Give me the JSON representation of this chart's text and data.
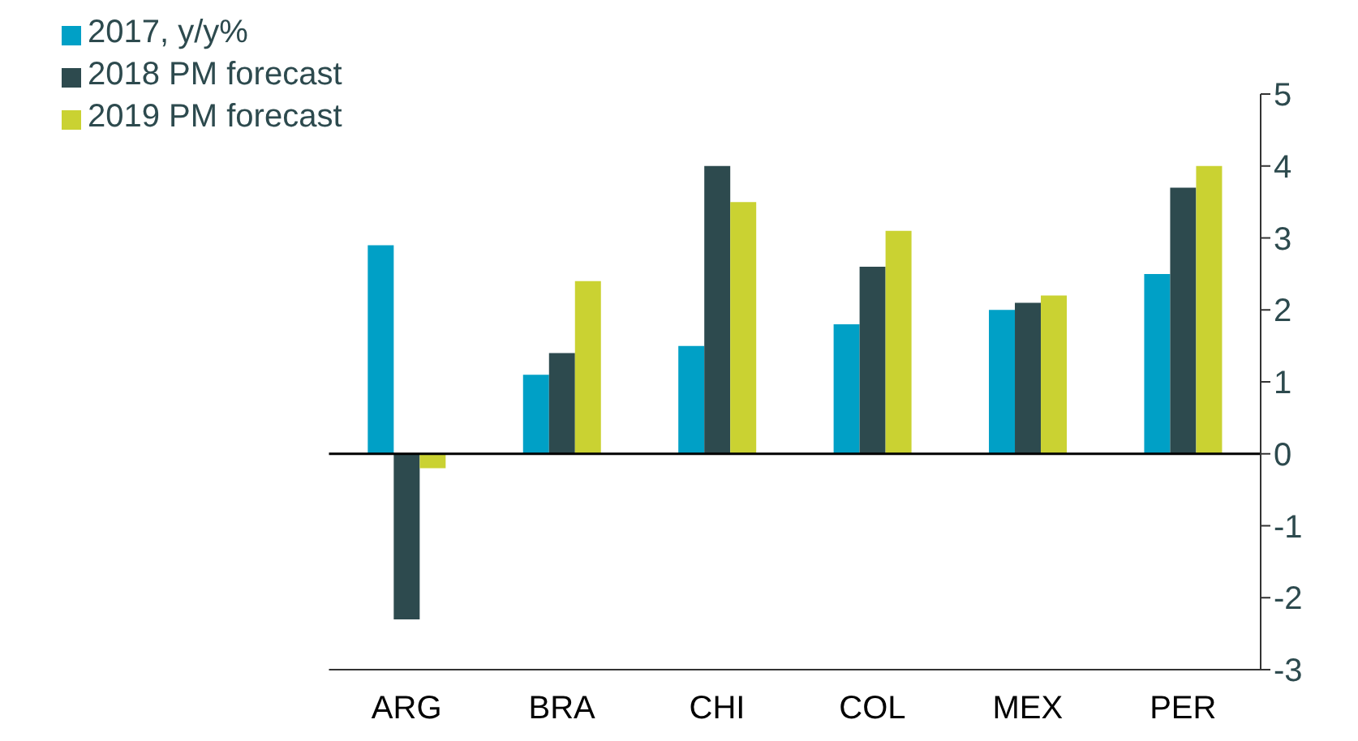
{
  "chart_data": {
    "type": "bar",
    "categories": [
      "ARG",
      "BRA",
      "CHI",
      "COL",
      "MEX",
      "PER"
    ],
    "series": [
      {
        "name": "2017, y/y%",
        "color": "#00a0c6",
        "values": [
          2.9,
          1.1,
          1.5,
          1.8,
          2.0,
          2.5
        ]
      },
      {
        "name": "2018 PM forecast",
        "color": "#2d4a4e",
        "values": [
          -2.3,
          1.4,
          4.0,
          2.6,
          2.1,
          3.7
        ]
      },
      {
        "name": "2019 PM forecast",
        "color": "#cad232",
        "values": [
          -0.2,
          2.4,
          3.5,
          3.1,
          2.2,
          4.0
        ]
      }
    ],
    "ylim": [
      -3,
      5
    ],
    "yticks": [
      -3,
      -2,
      -1,
      0,
      1,
      2,
      3,
      4,
      5
    ],
    "grid": false,
    "legend": "top left",
    "ref_lines": [
      {
        "axis": "y",
        "value": 0,
        "color": "#000000"
      }
    ]
  }
}
